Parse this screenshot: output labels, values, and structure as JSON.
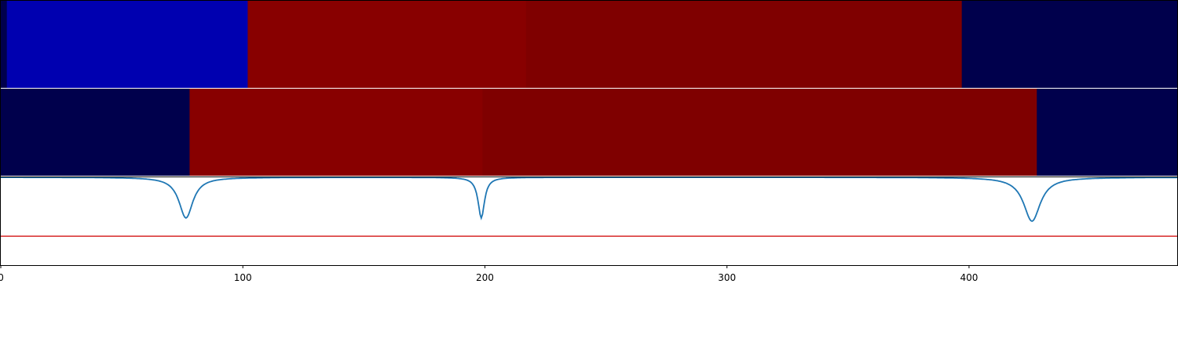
{
  "chart_data": {
    "type": "heatmap",
    "x_ticks": [
      0,
      100,
      200,
      300,
      400
    ],
    "xlim": [
      0,
      486
    ],
    "rows": [
      {
        "segments": [
          {
            "start": 0,
            "end": 2.5,
            "color": "#00004c"
          },
          {
            "start": 2.5,
            "end": 102,
            "color": "#0000b0"
          },
          {
            "start": 102,
            "end": 217,
            "color": "#880000"
          },
          {
            "start": 217,
            "end": 397,
            "color": "#7f0000"
          },
          {
            "start": 397,
            "end": 486,
            "color": "#00004c"
          }
        ]
      },
      {
        "segments": [
          {
            "start": 0,
            "end": 78,
            "color": "#00004c"
          },
          {
            "start": 78,
            "end": 199,
            "color": "#880000"
          },
          {
            "start": 199,
            "end": 428,
            "color": "#7f0000"
          },
          {
            "start": 428,
            "end": 486,
            "color": "#00004c"
          }
        ]
      }
    ],
    "line_panel": {
      "ylim": [
        -0.62,
        0.2
      ],
      "series": [
        {
          "color": "#1f77b4",
          "baseline": 0.2,
          "dips": [
            {
              "center": 76.5,
              "depth": 0.38,
              "width": 3.5
            },
            {
              "center": 198.5,
              "depth": 0.38,
              "width": 1.6
            },
            {
              "center": 426,
              "depth": 0.41,
              "width": 4.2
            }
          ]
        }
      ],
      "threshold": {
        "value": -0.35,
        "color": "#d62728"
      }
    }
  }
}
